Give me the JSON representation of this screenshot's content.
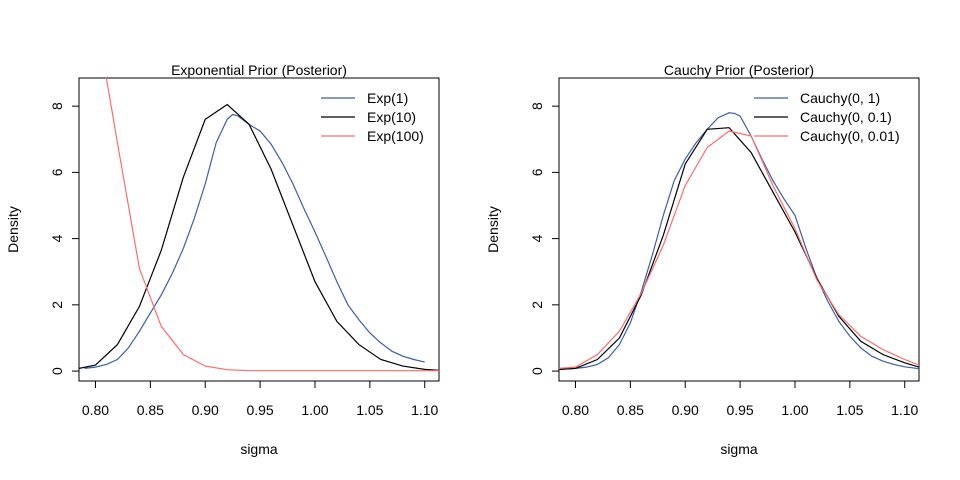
{
  "chart_data": [
    {
      "type": "line",
      "title": "Exponential Prior (Posterior)",
      "xlabel": "sigma",
      "ylabel": "Density",
      "xlim": [
        0.785,
        1.113
      ],
      "ylim": [
        -0.3,
        8.85
      ],
      "xticks": [
        0.8,
        0.85,
        0.9,
        0.95,
        1.0,
        1.05,
        1.1
      ],
      "xtick_labels": [
        "0.80",
        "0.85",
        "0.90",
        "0.95",
        "1.00",
        "1.05",
        "1.10"
      ],
      "yticks": [
        0,
        2,
        4,
        6,
        8
      ],
      "ytick_labels": [
        "0",
        "2",
        "4",
        "6",
        "8"
      ],
      "legend_position": "top-right",
      "series": [
        {
          "name": "Exp(1)",
          "color": "#3b5fa6",
          "x": [
            0.79,
            0.8,
            0.81,
            0.82,
            0.83,
            0.84,
            0.85,
            0.86,
            0.87,
            0.88,
            0.89,
            0.9,
            0.91,
            0.92,
            0.925,
            0.93,
            0.94,
            0.95,
            0.96,
            0.97,
            0.98,
            0.99,
            1.0,
            1.01,
            1.02,
            1.03,
            1.04,
            1.05,
            1.06,
            1.07,
            1.08,
            1.09,
            1.1
          ],
          "y": [
            0.08,
            0.12,
            0.2,
            0.35,
            0.7,
            1.2,
            1.75,
            2.3,
            2.95,
            3.7,
            4.6,
            5.65,
            6.9,
            7.6,
            7.75,
            7.7,
            7.45,
            7.25,
            6.85,
            6.3,
            5.65,
            4.9,
            4.2,
            3.45,
            2.7,
            2.0,
            1.55,
            1.15,
            0.85,
            0.6,
            0.45,
            0.35,
            0.27
          ]
        },
        {
          "name": "Exp(10)",
          "color": "#000000",
          "x": [
            0.785,
            0.8,
            0.82,
            0.84,
            0.86,
            0.88,
            0.9,
            0.92,
            0.94,
            0.96,
            0.98,
            1.0,
            1.02,
            1.04,
            1.06,
            1.08,
            1.1,
            1.113
          ],
          "y": [
            0.08,
            0.18,
            0.8,
            1.95,
            3.65,
            5.85,
            7.6,
            8.05,
            7.45,
            6.1,
            4.4,
            2.7,
            1.5,
            0.8,
            0.35,
            0.15,
            0.05,
            0.02
          ]
        },
        {
          "name": "Exp(100)",
          "color": "#ff6b6b",
          "x": [
            0.81,
            0.82,
            0.84,
            0.86,
            0.88,
            0.9,
            0.92,
            0.94,
            0.96,
            0.98,
            1.0,
            1.02,
            1.04,
            1.06,
            1.08,
            1.1,
            1.113
          ],
          "y": [
            8.85,
            6.9,
            3.1,
            1.35,
            0.5,
            0.15,
            0.04,
            0.01,
            0.01,
            0.01,
            0.01,
            0.01,
            0.01,
            0.01,
            0.01,
            0.01,
            0.01
          ]
        }
      ]
    },
    {
      "type": "line",
      "title": "Cauchy Prior (Posterior)",
      "xlabel": "sigma",
      "ylabel": "Density",
      "xlim": [
        0.785,
        1.113
      ],
      "ylim": [
        -0.3,
        8.85
      ],
      "xticks": [
        0.8,
        0.85,
        0.9,
        0.95,
        1.0,
        1.05,
        1.1
      ],
      "xtick_labels": [
        "0.80",
        "0.85",
        "0.90",
        "0.95",
        "1.00",
        "1.05",
        "1.10"
      ],
      "yticks": [
        0,
        2,
        4,
        6,
        8
      ],
      "ytick_labels": [
        "0",
        "2",
        "4",
        "6",
        "8"
      ],
      "legend_position": "top-right",
      "series": [
        {
          "name": "Cauchy(0, 1)",
          "color": "#3b5fa6",
          "x": [
            0.785,
            0.8,
            0.81,
            0.82,
            0.83,
            0.84,
            0.85,
            0.86,
            0.87,
            0.88,
            0.89,
            0.9,
            0.91,
            0.92,
            0.93,
            0.94,
            0.945,
            0.95,
            0.96,
            0.97,
            0.98,
            0.99,
            1.0,
            1.01,
            1.02,
            1.03,
            1.04,
            1.05,
            1.06,
            1.07,
            1.08,
            1.09,
            1.1,
            1.113
          ],
          "y": [
            0.05,
            0.08,
            0.12,
            0.2,
            0.4,
            0.8,
            1.45,
            2.4,
            3.5,
            4.7,
            5.75,
            6.4,
            6.9,
            7.3,
            7.65,
            7.8,
            7.78,
            7.7,
            7.1,
            6.4,
            5.75,
            5.2,
            4.7,
            3.7,
            2.8,
            2.1,
            1.5,
            1.05,
            0.7,
            0.45,
            0.3,
            0.2,
            0.13,
            0.07
          ]
        },
        {
          "name": "Cauchy(0, 0.1)",
          "color": "#000000",
          "x": [
            0.785,
            0.8,
            0.82,
            0.84,
            0.86,
            0.88,
            0.9,
            0.92,
            0.94,
            0.96,
            0.98,
            1.0,
            1.02,
            1.04,
            1.06,
            1.08,
            1.1,
            1.113
          ],
          "y": [
            0.05,
            0.08,
            0.35,
            1.0,
            2.3,
            4.1,
            6.25,
            7.3,
            7.35,
            6.6,
            5.4,
            4.2,
            2.8,
            1.65,
            0.9,
            0.5,
            0.25,
            0.12
          ]
        },
        {
          "name": "Cauchy(0, 0.01)",
          "color": "#ff6b6b",
          "x": [
            0.785,
            0.8,
            0.82,
            0.84,
            0.86,
            0.88,
            0.9,
            0.92,
            0.94,
            0.96,
            0.98,
            1.0,
            1.02,
            1.04,
            1.06,
            1.08,
            1.1,
            1.113
          ],
          "y": [
            0.08,
            0.12,
            0.5,
            1.2,
            2.35,
            3.8,
            5.6,
            6.75,
            7.25,
            7.1,
            5.6,
            4.3,
            2.75,
            1.7,
            1.05,
            0.65,
            0.35,
            0.18
          ]
        }
      ]
    }
  ]
}
